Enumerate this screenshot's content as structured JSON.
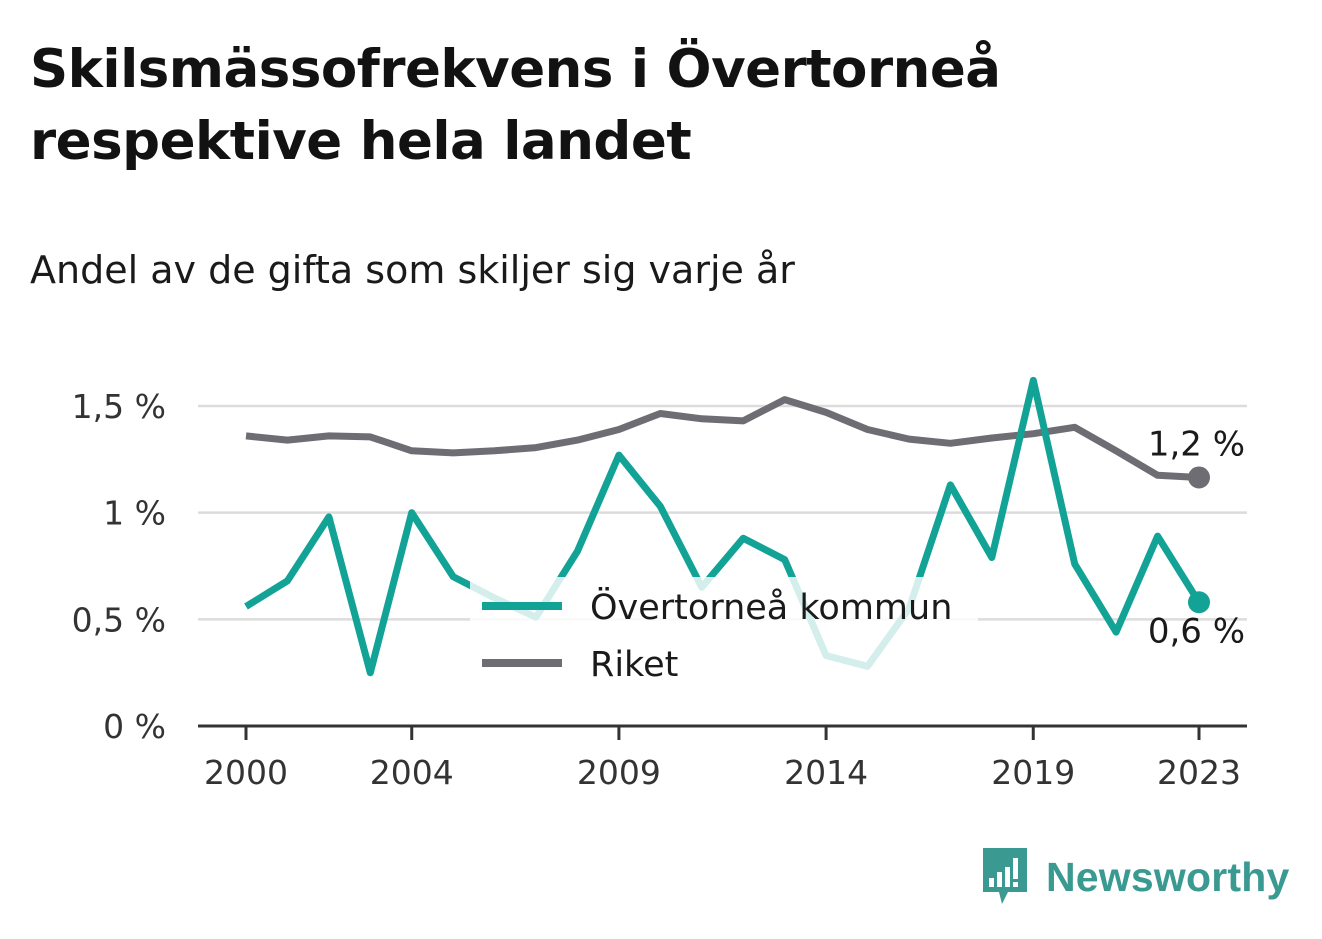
{
  "header": {
    "title": "Skilsmässofrekvens i Övertorneå respektive hela landet",
    "subtitle": "Andel av de gifta som skiljer sig varje år"
  },
  "brand": {
    "name": "Newsworthy",
    "icon": "newsworthy-logo-icon",
    "color": "#3a9a91"
  },
  "colors": {
    "teal": "#12a396",
    "teal_light": "#cdeeea",
    "gray": "#6e6d74",
    "grid": "#dcdcdc",
    "axis": "#333333"
  },
  "chart_data": {
    "type": "line",
    "title": "Skilsmässofrekvens i Övertorneå respektive hela landet",
    "subtitle": "Andel av de gifta som skiljer sig varje år",
    "xlabel": "",
    "ylabel": "",
    "x": [
      2000,
      2001,
      2002,
      2003,
      2004,
      2005,
      2006,
      2007,
      2008,
      2009,
      2010,
      2011,
      2012,
      2013,
      2014,
      2015,
      2016,
      2017,
      2018,
      2019,
      2020,
      2021,
      2022,
      2023
    ],
    "xlim": [
      2000,
      2023
    ],
    "ylim": [
      0,
      1.6
    ],
    "x_ticks": [
      2000,
      2004,
      2009,
      2014,
      2019,
      2023
    ],
    "x_tick_labels": [
      "2000",
      "2004",
      "2009",
      "2014",
      "2019",
      "2023"
    ],
    "y_ticks": [
      0,
      0.5,
      1,
      1.5
    ],
    "y_tick_labels": [
      "0 %",
      "0,5 %",
      "1 %",
      "1,5 %"
    ],
    "grid": true,
    "legend_position": "center",
    "series": [
      {
        "name": "Övertorneå kommun",
        "color": "#12a396",
        "values": [
          0.56,
          0.68,
          0.98,
          0.25,
          1.0,
          0.7,
          0.6,
          0.51,
          0.82,
          1.27,
          1.03,
          0.65,
          0.88,
          0.78,
          0.33,
          0.28,
          0.55,
          1.13,
          0.79,
          1.62,
          0.76,
          0.44,
          0.89,
          0.58
        ],
        "end_label": "0,6 %"
      },
      {
        "name": "Riket",
        "color": "#6e6d74",
        "values": [
          1.36,
          1.34,
          1.36,
          1.355,
          1.29,
          1.28,
          1.29,
          1.305,
          1.34,
          1.39,
          1.465,
          1.44,
          1.43,
          1.53,
          1.47,
          1.39,
          1.345,
          1.325,
          1.35,
          1.37,
          1.4,
          1.29,
          1.175,
          1.165
        ],
        "end_label": "1,2 %"
      }
    ]
  }
}
